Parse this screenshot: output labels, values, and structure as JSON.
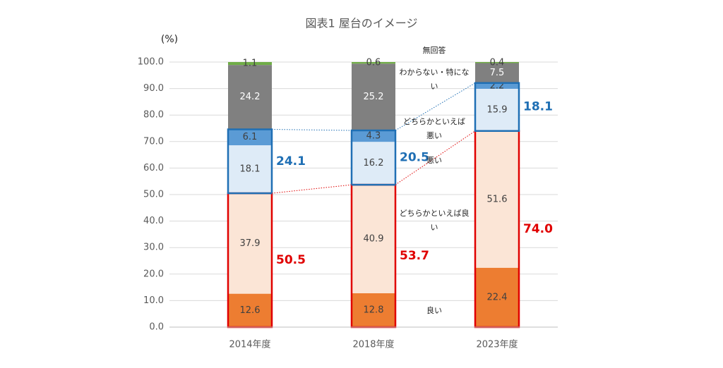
{
  "chart_data": {
    "type": "stacked_bar",
    "title": "図表1 屋台のイメージ",
    "y_label": "(%)",
    "categories": [
      "2014年度",
      "2018年度",
      "2023年度"
    ],
    "series": [
      {
        "name": "良い",
        "color": "#ed7d31",
        "label_color": "#404040",
        "values": [
          12.6,
          12.8,
          22.4
        ]
      },
      {
        "name": "どちらかといえば良い",
        "color": "#fbe5d6",
        "label_color": "#404040",
        "values": [
          37.9,
          40.9,
          51.6
        ]
      },
      {
        "name": "悪い",
        "color": "#deebf7",
        "label_color": "#404040",
        "values": [
          18.1,
          16.2,
          15.9
        ]
      },
      {
        "name": "どちらかといえば悪い",
        "color": "#5b9bd5",
        "label_color": "#404040",
        "values": [
          6.1,
          4.3,
          2.2
        ]
      },
      {
        "name": "わからない・特にない",
        "color": "#808080",
        "label_color": "#ffffff",
        "values": [
          24.2,
          25.2,
          7.5
        ]
      },
      {
        "name": "無回答",
        "color": "#70ad47",
        "label_color": "#404040",
        "values": [
          1.1,
          0.6,
          0.4
        ]
      }
    ],
    "good_totals": {
      "color": "#e00000",
      "values": [
        50.5,
        53.7,
        74.0
      ],
      "value_labels": [
        "50.5",
        "53.7",
        "74.0"
      ]
    },
    "bad_totals": {
      "color": "#1f6fb4",
      "values": [
        24.1,
        20.5,
        18.1
      ]
    },
    "ylim": [
      0,
      100
    ],
    "yticks": [
      {
        "value": 0,
        "label": "0.0"
      },
      {
        "value": 10,
        "label": "10.0"
      },
      {
        "value": 20,
        "label": "20.0"
      },
      {
        "value": 30,
        "label": "30.0"
      },
      {
        "value": 40,
        "label": "40.0"
      },
      {
        "value": 50,
        "label": "50.0"
      },
      {
        "value": 60,
        "label": "60.0"
      },
      {
        "value": 70,
        "label": "70.0"
      },
      {
        "value": 80,
        "label": "80.0"
      },
      {
        "value": 90,
        "label": "90.0"
      },
      {
        "value": 100,
        "label": "100.0"
      }
    ],
    "grid": true
  }
}
